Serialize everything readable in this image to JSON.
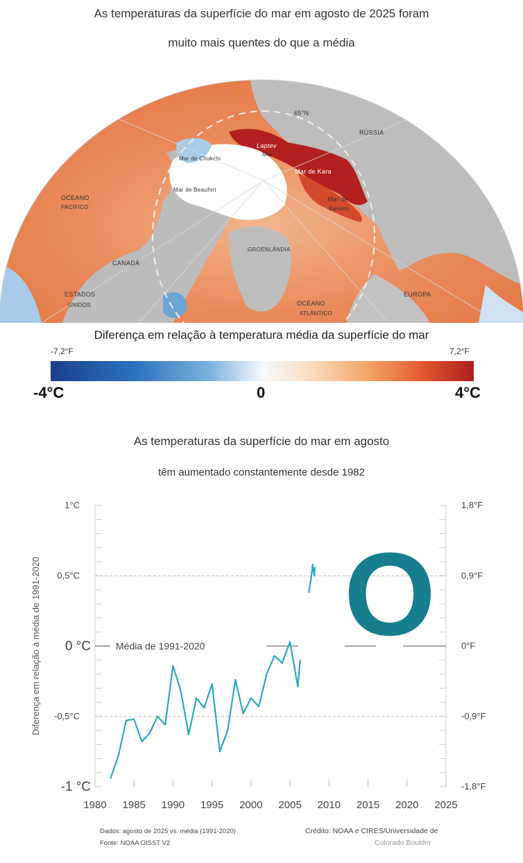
{
  "map": {
    "title_line1": "As temperaturas da superfície do mar em agosto de 2025 foram",
    "title_line2": "muito mais quentes do que a média",
    "labels": {
      "lat": "65°N",
      "russia": "RÚSSIA",
      "laptev": "Laptev",
      "laptev_mar": "Mar",
      "chukchi": "Mar de Chukchi",
      "beaufort": "Mar de Beaufort",
      "kara": "Mar de Kara",
      "barents_1": "Mar de",
      "barents_2": "Barents",
      "pacific_1": "OCEANO",
      "pacific_2": "PACÍFICO",
      "canada": "CANADÁ",
      "greenland": "GROENLÂNDIA",
      "usa_1": "ESTADOS",
      "usa_2": "UNIDOS",
      "atlantic_1": "OCEANO",
      "atlantic_2": "ATLÂNTICO",
      "europe": "EUROPA"
    },
    "colors": {
      "land": "#b9b9b9",
      "ice": "#ffffff",
      "warm": "#e8774a",
      "hot": "#b32020",
      "cool": "#9cc6e6"
    }
  },
  "legend": {
    "title": "Diferença em relação à temperatura média da superfície do mar",
    "min_f": "-7,2°F",
    "max_f": "7,2°F",
    "min_c": "-4°C",
    "mid": "0",
    "max_c": "4°C"
  },
  "chart": {
    "title_line1": "As temperaturas da superfície do mar em agosto",
    "title_line2": "têm aumentado constantemente desde 1982",
    "mean_label": "Média de 1991-2020",
    "footnote_left_1": "Dados: agosto de 2025 vs. média (1991-2020)",
    "footnote_left_2": "Fonte: NOAA OISST V2",
    "footnote_right_1": "Crédito: NOAA e CIRES/Universidade de",
    "footnote_right_2": "Colorado Boulder",
    "line_color": "#2aa6c2",
    "marker_color": "#167e8f"
  },
  "chart_data": {
    "type": "line",
    "ylabel": "Diferença em relação à média de 1991-2020",
    "ylim": [
      -1,
      1
    ],
    "xlim": [
      1980,
      2025
    ],
    "x_ticks": [
      "1980",
      "1985",
      "1990",
      "1995",
      "2000",
      "2005",
      "2010",
      "2015",
      "2020",
      "2025"
    ],
    "y_ticks_left": [
      {
        "value": 1,
        "label": "1°C"
      },
      {
        "value": 0.5,
        "label": "0,5°C"
      },
      {
        "value": 0,
        "label": "0 °C"
      },
      {
        "value": -0.5,
        "label": "-0,5°C"
      },
      {
        "value": -1,
        "label": "-1 °C"
      }
    ],
    "y_ticks_right": [
      {
        "value": 1,
        "label": "1,8°F"
      },
      {
        "value": 0.5,
        "label": "0,9°F"
      },
      {
        "value": 0,
        "label": "0°F"
      },
      {
        "value": -0.5,
        "label": "-0,9°F"
      },
      {
        "value": -1,
        "label": "-1,8°F"
      }
    ],
    "grid": "dashed at ±0.5, solid at 0",
    "series": [
      {
        "x": [
          1982,
          1983,
          1984,
          1985,
          1986,
          1987,
          1988,
          1989,
          1990,
          1991,
          1992,
          1993,
          1994,
          1995,
          1996,
          1997,
          1998,
          1999,
          2000,
          2001,
          2002,
          2003,
          2004,
          2005,
          2006
        ],
        "values": [
          -0.94,
          -0.78,
          -0.53,
          -0.52,
          -0.68,
          -0.62,
          -0.5,
          -0.56,
          -0.14,
          -0.32,
          -0.63,
          -0.37,
          -0.44,
          -0.27,
          -0.75,
          -0.6,
          -0.24,
          -0.48,
          -0.37,
          -0.43,
          -0.2,
          -0.07,
          -0.12,
          0.03,
          -0.29
        ]
      },
      {
        "x": [
          2006,
          2006.3
        ],
        "values": [
          -0.29,
          -0.1
        ]
      },
      {
        "x": [
          2007.4,
          2007.7,
          2007.9,
          2008.1,
          2008.2
        ],
        "values": [
          0.38,
          0.48,
          0.58,
          0.5,
          0.56
        ]
      }
    ],
    "marker": {
      "label": "O"
    }
  }
}
